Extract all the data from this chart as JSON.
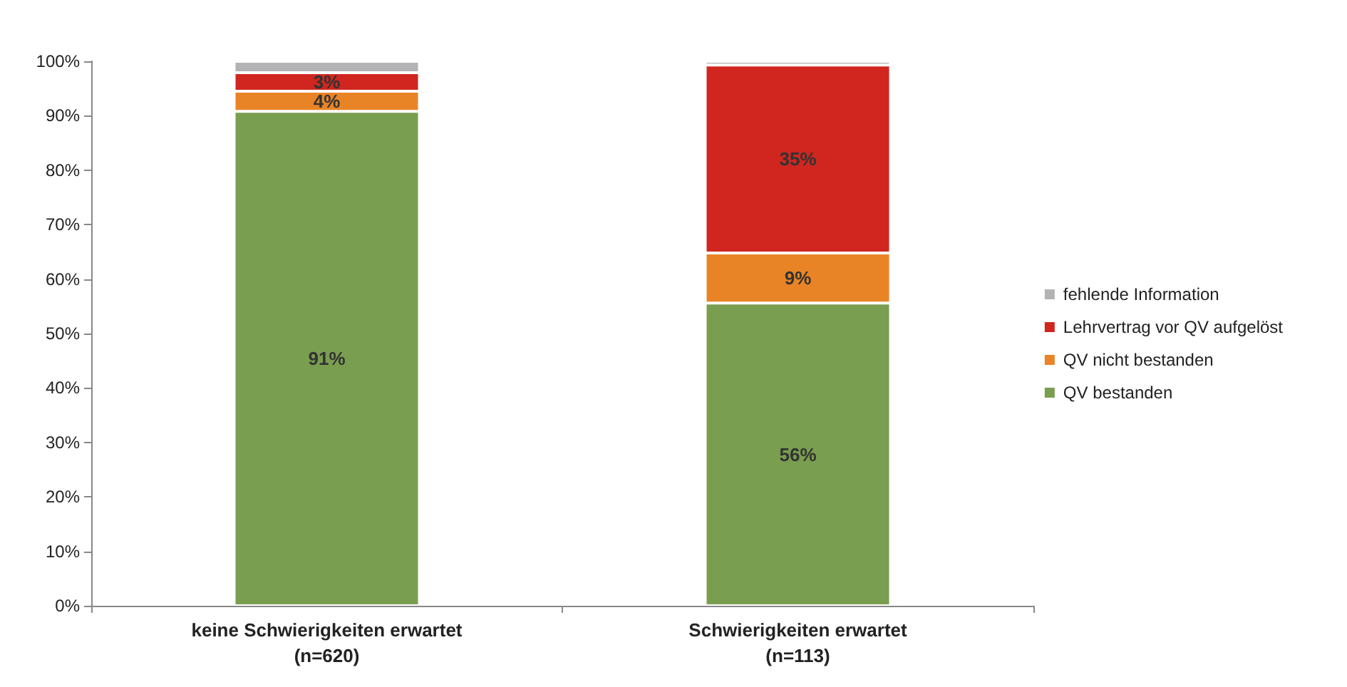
{
  "chart_data": {
    "type": "bar",
    "stacked": true,
    "categories": [
      "keine Schwierigkeiten erwartet\n(n=620)",
      "Schwierigkeiten erwartet\n(n=113)"
    ],
    "series": [
      {
        "name": "QV bestanden",
        "color": "#7a9e4f",
        "values": [
          90.8,
          55.6
        ],
        "value_labels": [
          "91%",
          "56%"
        ]
      },
      {
        "name": "QV nicht bestanden",
        "color": "#e88426",
        "values": [
          3.7,
          9.2
        ],
        "value_labels": [
          "4%",
          "9%"
        ]
      },
      {
        "name": "Lehrvertrag vor QV aufgelöst",
        "color": "#d0261f",
        "values": [
          3.4,
          34.5
        ],
        "value_labels": [
          "3%",
          "35%"
        ]
      },
      {
        "name": "fehlende Information",
        "color": "#b3b3b5",
        "values": [
          2.1,
          0.7
        ],
        "value_labels": [
          null,
          null
        ]
      }
    ],
    "ylim": [
      0,
      100
    ],
    "yticks": [
      {
        "value": 0,
        "label": "0%"
      },
      {
        "value": 10,
        "label": "10%"
      },
      {
        "value": 20,
        "label": "20%"
      },
      {
        "value": 30,
        "label": "30%"
      },
      {
        "value": 40,
        "label": "40%"
      },
      {
        "value": 50,
        "label": "50%"
      },
      {
        "value": 60,
        "label": "60%"
      },
      {
        "value": 70,
        "label": "70%"
      },
      {
        "value": 80,
        "label": "80%"
      },
      {
        "value": 90,
        "label": "90%"
      },
      {
        "value": 100,
        "label": "100%"
      }
    ],
    "grid": false,
    "legend": "right"
  }
}
